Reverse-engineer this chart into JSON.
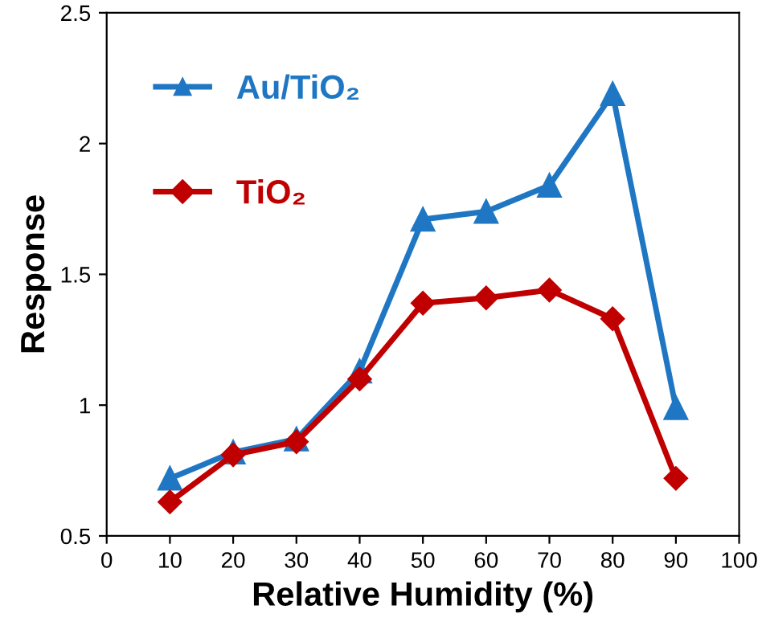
{
  "chart_data": {
    "type": "line",
    "xlabel": "Relative Humidity (%)",
    "ylabel": "Response",
    "x": [
      10,
      20,
      30,
      40,
      50,
      60,
      70,
      80,
      90
    ],
    "series": [
      {
        "name": "Au/TiO₂",
        "color": "#1f77c4",
        "marker": "triangle",
        "values": [
          0.72,
          0.82,
          0.87,
          1.13,
          1.71,
          1.74,
          1.84,
          2.19,
          0.99
        ]
      },
      {
        "name": "TiO₂",
        "color": "#c00000",
        "marker": "diamond",
        "values": [
          0.63,
          0.81,
          0.86,
          1.1,
          1.39,
          1.41,
          1.44,
          1.33,
          0.72
        ]
      }
    ],
    "xlim": [
      0,
      100
    ],
    "xticks": [
      0,
      10,
      20,
      30,
      40,
      50,
      60,
      70,
      80,
      90,
      100
    ],
    "ylim": [
      0.5,
      2.5
    ],
    "yticks": [
      0.5,
      1,
      1.5,
      2,
      2.5
    ],
    "grid": false,
    "legend": "top left",
    "line_style": "solid"
  }
}
